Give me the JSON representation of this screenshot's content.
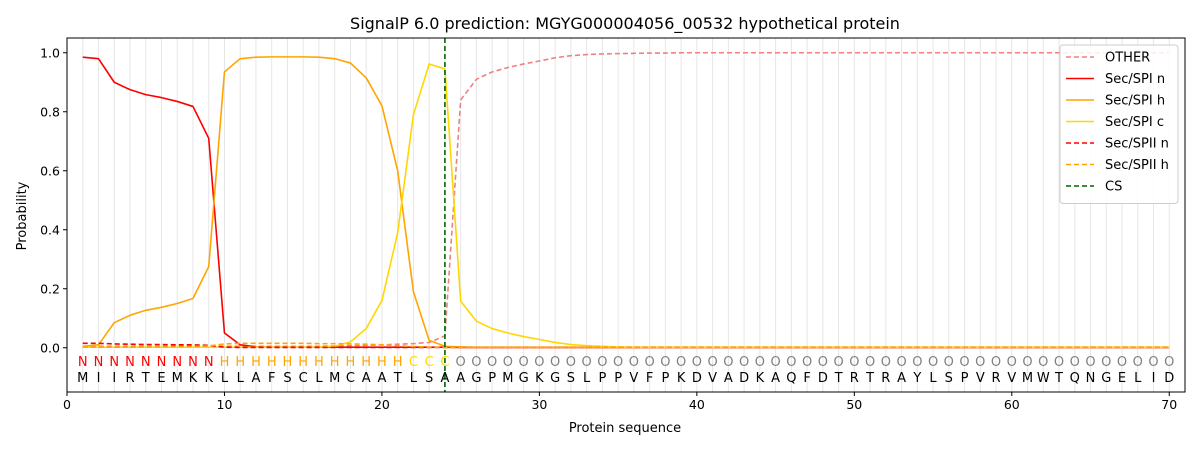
{
  "chart_data": {
    "type": "line",
    "title": "SignalP 6.0 prediction: MGYG000004056_00532 hypothetical protein",
    "xlabel": "Protein sequence",
    "ylabel": "Probability",
    "xlim": [
      0,
      71
    ],
    "ylim": [
      -0.15,
      1.05
    ],
    "xticks": [
      0,
      10,
      20,
      30,
      40,
      50,
      60,
      70
    ],
    "yticks": [
      0.0,
      0.2,
      0.4,
      0.6,
      0.8,
      1.0
    ],
    "xtick_labels": [
      "0",
      "10",
      "20",
      "30",
      "40",
      "50",
      "60",
      "70"
    ],
    "ytick_labels": [
      "0.0",
      "0.2",
      "0.4",
      "0.6",
      "0.8",
      "1.0"
    ],
    "grid": "vertical lines at each residue",
    "legend_position": "top-right",
    "sequence": [
      "M",
      "I",
      "I",
      "R",
      "T",
      "E",
      "M",
      "K",
      "K",
      "L",
      "L",
      "A",
      "F",
      "S",
      "C",
      "L",
      "M",
      "C",
      "A",
      "A",
      "T",
      "L",
      "S",
      "A",
      "A",
      "G",
      "P",
      "M",
      "G",
      "K",
      "G",
      "S",
      "L",
      "P",
      "P",
      "V",
      "F",
      "P",
      "K",
      "D",
      "V",
      "A",
      "D",
      "K",
      "A",
      "Q",
      "F",
      "D",
      "T",
      "R",
      "T",
      "R",
      "A",
      "Y",
      "L",
      "S",
      "P",
      "V",
      "R",
      "V",
      "M",
      "W",
      "T",
      "Q",
      "N",
      "G",
      "E",
      "L",
      "I",
      "D"
    ],
    "region_labels": [
      "N",
      "N",
      "N",
      "N",
      "N",
      "N",
      "N",
      "N",
      "N",
      "H",
      "H",
      "H",
      "H",
      "H",
      "H",
      "H",
      "H",
      "H",
      "H",
      "H",
      "H",
      "C",
      "C",
      "C",
      "O",
      "O",
      "O",
      "O",
      "O",
      "O",
      "O",
      "O",
      "O",
      "O",
      "O",
      "O",
      "O",
      "O",
      "O",
      "O",
      "O",
      "O",
      "O",
      "O",
      "O",
      "O",
      "O",
      "O",
      "O",
      "O",
      "O",
      "O",
      "O",
      "O",
      "O",
      "O",
      "O",
      "O",
      "O",
      "O",
      "O",
      "O",
      "O",
      "O",
      "O",
      "O",
      "O",
      "O",
      "O",
      "O"
    ],
    "region_colors": {
      "N": "#ff0000",
      "H": "#ffa500",
      "C": "#ffd700",
      "O": "#808080"
    },
    "cleavage_site": 24,
    "series": [
      {
        "name": "OTHER",
        "color": "#f08080",
        "style": "dashed",
        "values": [
          0.005,
          0.005,
          0.005,
          0.005,
          0.005,
          0.005,
          0.005,
          0.005,
          0.005,
          0.005,
          0.005,
          0.005,
          0.005,
          0.005,
          0.005,
          0.005,
          0.006,
          0.007,
          0.008,
          0.01,
          0.012,
          0.014,
          0.018,
          0.04,
          0.84,
          0.91,
          0.935,
          0.95,
          0.962,
          0.972,
          0.983,
          0.99,
          0.994,
          0.996,
          0.997,
          0.998,
          0.999,
          0.999,
          1.0,
          1.0,
          1.0,
          1.0,
          1.0,
          1.0,
          1.0,
          1.0,
          1.0,
          1.0,
          1.0,
          1.0,
          1.0,
          1.0,
          1.0,
          1.0,
          1.0,
          1.0,
          1.0,
          1.0,
          1.0,
          1.0,
          1.0,
          1.0,
          1.0,
          1.0,
          1.0,
          1.0,
          1.0,
          1.0,
          1.0,
          1.0
        ]
      },
      {
        "name": "Sec/SPI n",
        "color": "#ff0000",
        "style": "solid",
        "values": [
          0.985,
          0.98,
          0.9,
          0.875,
          0.858,
          0.848,
          0.835,
          0.818,
          0.71,
          0.05,
          0.01,
          0.003,
          0.002,
          0.002,
          0.002,
          0.002,
          0.002,
          0.002,
          0.002,
          0.002,
          0.002,
          0.002,
          0.002,
          0.002,
          0.001,
          0.001,
          0.001,
          0.001,
          0.001,
          0.001,
          0.001,
          0.001,
          0.001,
          0.001,
          0.001,
          0.001,
          0.001,
          0.001,
          0.001,
          0.001,
          0.001,
          0.001,
          0.001,
          0.001,
          0.001,
          0.001,
          0.001,
          0.001,
          0.001,
          0.001,
          0.001,
          0.001,
          0.001,
          0.001,
          0.001,
          0.001,
          0.001,
          0.001,
          0.001,
          0.001,
          0.001,
          0.001,
          0.001,
          0.001,
          0.001,
          0.001,
          0.001,
          0.001,
          0.001,
          0.001
        ]
      },
      {
        "name": "Sec/SPI h",
        "color": "#ffa500",
        "style": "solid",
        "values": [
          0.005,
          0.01,
          0.085,
          0.11,
          0.127,
          0.137,
          0.15,
          0.167,
          0.275,
          0.935,
          0.98,
          0.985,
          0.986,
          0.986,
          0.986,
          0.985,
          0.98,
          0.965,
          0.915,
          0.82,
          0.6,
          0.19,
          0.025,
          0.005,
          0.003,
          0.002,
          0.002,
          0.002,
          0.002,
          0.002,
          0.002,
          0.002,
          0.002,
          0.002,
          0.002,
          0.002,
          0.002,
          0.002,
          0.002,
          0.002,
          0.002,
          0.002,
          0.002,
          0.002,
          0.002,
          0.002,
          0.002,
          0.002,
          0.002,
          0.002,
          0.002,
          0.002,
          0.002,
          0.002,
          0.002,
          0.002,
          0.002,
          0.002,
          0.002,
          0.002,
          0.002,
          0.002,
          0.002,
          0.002,
          0.002,
          0.002,
          0.002,
          0.002,
          0.002,
          0.002
        ]
      },
      {
        "name": "Sec/SPI c",
        "color": "#ffd700",
        "style": "solid",
        "values": [
          0.002,
          0.002,
          0.002,
          0.002,
          0.002,
          0.002,
          0.002,
          0.002,
          0.002,
          0.002,
          0.002,
          0.002,
          0.002,
          0.002,
          0.002,
          0.002,
          0.005,
          0.02,
          0.065,
          0.16,
          0.39,
          0.79,
          0.962,
          0.945,
          0.158,
          0.09,
          0.065,
          0.05,
          0.038,
          0.028,
          0.018,
          0.011,
          0.007,
          0.005,
          0.003,
          0.002,
          0.002,
          0.002,
          0.002,
          0.002,
          0.002,
          0.002,
          0.002,
          0.002,
          0.002,
          0.002,
          0.002,
          0.002,
          0.002,
          0.002,
          0.002,
          0.002,
          0.002,
          0.002,
          0.002,
          0.002,
          0.002,
          0.002,
          0.002,
          0.002,
          0.002,
          0.002,
          0.002,
          0.002,
          0.002,
          0.002,
          0.002,
          0.002,
          0.002,
          0.002
        ]
      },
      {
        "name": "Sec/SPII n",
        "color": "#ff0000",
        "style": "dashed",
        "values": [
          0.015,
          0.015,
          0.013,
          0.012,
          0.011,
          0.011,
          0.01,
          0.01,
          0.008,
          0.002,
          0.001,
          0.001,
          0.001,
          0.001,
          0.001,
          0.001,
          0.001,
          0.001,
          0.001,
          0.001,
          0.001,
          0.001,
          0.001,
          0.001,
          0.001,
          0.001,
          0.001,
          0.001,
          0.001,
          0.001,
          0.001,
          0.001,
          0.001,
          0.001,
          0.001,
          0.001,
          0.001,
          0.001,
          0.001,
          0.001,
          0.001,
          0.001,
          0.001,
          0.001,
          0.001,
          0.001,
          0.001,
          0.001,
          0.001,
          0.001,
          0.001,
          0.001,
          0.001,
          0.001,
          0.001,
          0.001,
          0.001,
          0.001,
          0.001,
          0.001,
          0.001,
          0.001,
          0.001,
          0.001,
          0.001,
          0.001,
          0.001,
          0.001,
          0.001,
          0.001
        ]
      },
      {
        "name": "Sec/SPII h",
        "color": "#ffa500",
        "style": "dashed",
        "values": [
          0.002,
          0.002,
          0.002,
          0.002,
          0.003,
          0.003,
          0.003,
          0.004,
          0.006,
          0.013,
          0.015,
          0.015,
          0.015,
          0.015,
          0.015,
          0.014,
          0.014,
          0.013,
          0.012,
          0.01,
          0.007,
          0.004,
          0.002,
          0.001,
          0.001,
          0.001,
          0.001,
          0.001,
          0.001,
          0.001,
          0.001,
          0.001,
          0.001,
          0.001,
          0.001,
          0.001,
          0.001,
          0.001,
          0.001,
          0.001,
          0.001,
          0.001,
          0.001,
          0.001,
          0.001,
          0.001,
          0.001,
          0.001,
          0.001,
          0.001,
          0.001,
          0.001,
          0.001,
          0.001,
          0.001,
          0.001,
          0.001,
          0.001,
          0.001,
          0.001,
          0.001,
          0.001,
          0.001,
          0.001,
          0.001,
          0.001,
          0.001,
          0.001,
          0.001,
          0.001
        ]
      }
    ],
    "legend_extra": {
      "name": "CS",
      "color": "#006400",
      "style": "dashed"
    }
  }
}
